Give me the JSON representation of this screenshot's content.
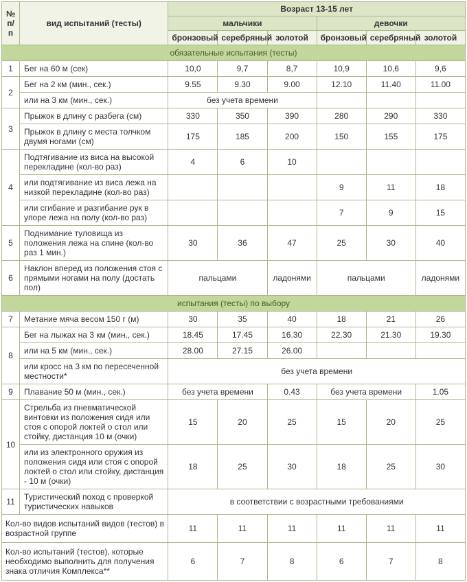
{
  "headers": {
    "num": "№ п/п",
    "test": "вид испытаний (тесты)",
    "age": "Возраст 13-15 лет",
    "boys": "мальчики",
    "girls": "девочки",
    "bronze": "бронзовый",
    "silver": "серебряный",
    "gold": "золотой"
  },
  "sections": {
    "mandatory": "обязательные испытания (тесты)",
    "optional": "испытания (тесты) по выбору"
  },
  "rows": {
    "r1": {
      "n": "1",
      "name": "Бег на 60 м (сек)",
      "b": [
        "10,0",
        "9,7",
        "8,7"
      ],
      "g": [
        "10,9",
        "10,6",
        "9,6"
      ]
    },
    "r2a": {
      "n": "2",
      "name": "Бег на 2 км (мин., сек.)",
      "b": [
        "9.55",
        "9.30",
        "9.00"
      ],
      "g": [
        "12.10",
        "11.40",
        "11.00"
      ]
    },
    "r2b": {
      "name": "или на 3 км (мин., сек.)",
      "span_b": "без учета времени"
    },
    "r3a": {
      "n": "3",
      "name": "Прыжок в длину с разбега (см)",
      "b": [
        "330",
        "350",
        "390"
      ],
      "g": [
        "280",
        "290",
        "330"
      ]
    },
    "r3b": {
      "name": "Прыжок в длину с места толчком двумя ногами (см)",
      "b": [
        "175",
        "185",
        "200"
      ],
      "g": [
        "150",
        "155",
        "175"
      ]
    },
    "r4a": {
      "n": "4",
      "name": "Подтягивание из виса на высокой перекладине (кол-во раз)",
      "b": [
        "4",
        "6",
        "10"
      ],
      "g": [
        "",
        "",
        ""
      ]
    },
    "r4b": {
      "name": "или подтягивание из виса лежа на низкой перекладине (кол-во раз)",
      "b": [
        "",
        "",
        ""
      ],
      "g": [
        "9",
        "11",
        "18"
      ]
    },
    "r4c": {
      "name": "или сгибание и разгибание рук в упоре лежа на полу (кол-во раз)",
      "b": [
        "",
        "",
        ""
      ],
      "g": [
        "7",
        "9",
        "15"
      ]
    },
    "r5": {
      "n": "5",
      "name": "Поднимание туловища из положения лежа на спине (кол-во раз 1 мин.)",
      "b": [
        "30",
        "36",
        "47"
      ],
      "g": [
        "25",
        "30",
        "40"
      ]
    },
    "r6": {
      "n": "6",
      "name": "Наклон вперед из положения стоя с прямыми ногами на полу (достать пол)",
      "b_txt": "пальцами",
      "b_gold": "ладонями",
      "g_txt": "пальцами",
      "g_gold": "ладонями"
    },
    "r7": {
      "n": "7",
      "name": "Метание мяча весом 150 г (м)",
      "b": [
        "30",
        "35",
        "40"
      ],
      "g": [
        "18",
        "21",
        "26"
      ]
    },
    "r8a": {
      "n": "8",
      "name": "Бег на лыжах на 3 км (мин., сек.)",
      "b": [
        "18.45",
        "17.45",
        "16.30"
      ],
      "g": [
        "22.30",
        "21.30",
        "19.30"
      ]
    },
    "r8b": {
      "name": "или на 5 км (мин., сек.)",
      "b": [
        "28.00",
        "27.15",
        "26.00"
      ],
      "g": [
        "",
        "",
        ""
      ]
    },
    "r8c": {
      "name": "или кросс на 3 км по пересеченной местности*",
      "span_all": "без учета времени"
    },
    "r9": {
      "n": "9",
      "name": "Плавание 50 м (мин., сек.)",
      "b_txt": "без учета времени",
      "b_gold": "0.43",
      "g_txt": "без учета времени",
      "g_gold": "1.05"
    },
    "r10a": {
      "n": "10",
      "name": "Стрельба из пневматической винтовки из положения сидя или стоя с опорой локтей о стол или стойку, дистанция 10 м (очки)",
      "b": [
        "15",
        "20",
        "25"
      ],
      "g": [
        "15",
        "20",
        "25"
      ]
    },
    "r10b": {
      "name": "или из электронного оружия из положения сидя или стоя с опорой локтей о стол или стойку, дистанция - 10 м (очки)",
      "b": [
        "18",
        "25",
        "30"
      ],
      "g": [
        "18",
        "25",
        "30"
      ]
    },
    "r11": {
      "n": "11",
      "name": "Туристический поход с проверкой туристических навыков",
      "span_all": "в соответствии с возрастными требованиями"
    }
  },
  "footer": {
    "f1": {
      "name": "Кол-во видов испытаний видов (тестов) в возрастной группе",
      "b": [
        "11",
        "11",
        "11"
      ],
      "g": [
        "11",
        "11",
        "11"
      ]
    },
    "f2": {
      "name": "Кол-во испытаний (тестов), которые необходимо выполнить для получения знака отличия Комплекса**",
      "b": [
        "6",
        "7",
        "8"
      ],
      "g": [
        "6",
        "7",
        "8"
      ]
    }
  },
  "colors": {
    "border": "#a9b98e",
    "section_bg": "#c3d69b",
    "age_bg": "#dce6c7",
    "medal_bg": "#f0f3e6"
  }
}
